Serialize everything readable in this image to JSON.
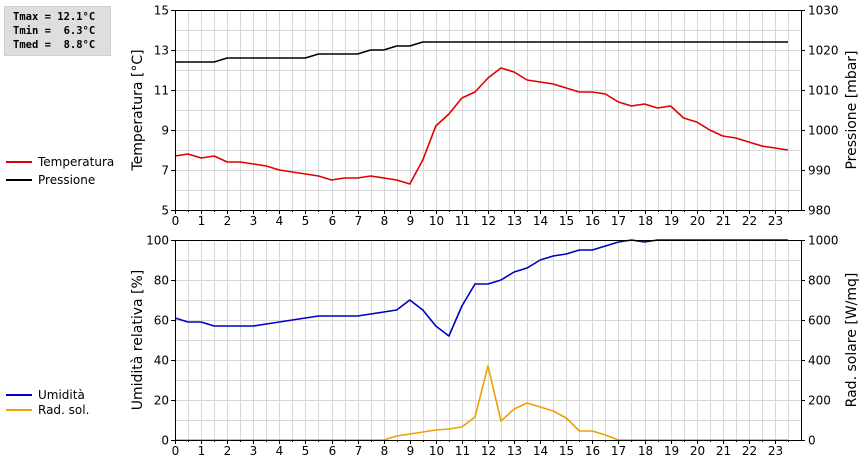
{
  "stats": {
    "tmax": "Tmax = 12.1°C",
    "tmin": "Tmin =  6.3°C",
    "tmed": "Tmed =  8.8°C"
  },
  "legend_top": [
    {
      "label": "Temperatura",
      "color": "#e00000"
    },
    {
      "label": "Pressione",
      "color": "#000000"
    }
  ],
  "legend_bottom": [
    {
      "label": "Umidità",
      "color": "#0000c0"
    },
    {
      "label": "Rad. sol.",
      "color": "#f0a000"
    }
  ],
  "chart_data": [
    {
      "type": "line",
      "ylabel_left": "Temperatura [°C]",
      "ylabel_right": "Pressione [mbar]",
      "xlim": [
        0,
        24
      ],
      "ylim_left": [
        5,
        15
      ],
      "ylim_right": [
        980,
        1030
      ],
      "x_ticks": [
        "0",
        "1",
        "2",
        "3",
        "4",
        "5",
        "6",
        "7",
        "8",
        "9",
        "10",
        "11",
        "12",
        "13",
        "14",
        "15",
        "16",
        "17",
        "18",
        "19",
        "20",
        "21",
        "22",
        "23"
      ],
      "y_ticks_left": [
        "5",
        "7",
        "9",
        "11",
        "13",
        "15"
      ],
      "y_ticks_right": [
        "980",
        "990",
        "1000",
        "1010",
        "1020",
        "1030"
      ],
      "grid": true,
      "series": [
        {
          "name": "Temperatura",
          "axis": "left",
          "color": "#e00000",
          "x": [
            0,
            0.5,
            1,
            1.5,
            2,
            2.5,
            3,
            3.5,
            4,
            4.5,
            5,
            5.5,
            6,
            6.5,
            7,
            7.5,
            8,
            8.5,
            9,
            9.5,
            10,
            10.5,
            11,
            11.5,
            12,
            12.5,
            13,
            13.5,
            14,
            14.5,
            15,
            15.5,
            16,
            16.5,
            17,
            17.5,
            18,
            18.5,
            19,
            19.5,
            20,
            20.5,
            21,
            21.5,
            22,
            22.5,
            23,
            23.5
          ],
          "values": [
            7.7,
            7.8,
            7.6,
            7.7,
            7.4,
            7.4,
            7.3,
            7.2,
            7.0,
            6.9,
            6.8,
            6.7,
            6.5,
            6.6,
            6.6,
            6.7,
            6.6,
            6.5,
            6.3,
            7.5,
            9.2,
            9.8,
            10.6,
            10.9,
            11.6,
            12.1,
            11.9,
            11.5,
            11.4,
            11.3,
            11.1,
            10.9,
            10.9,
            10.8,
            10.4,
            10.2,
            10.3,
            10.1,
            10.2,
            9.6,
            9.4,
            9.0,
            8.7,
            8.6,
            8.4,
            8.2,
            8.1,
            8.0
          ]
        },
        {
          "name": "Pressione",
          "axis": "right",
          "color": "#000000",
          "x": [
            0,
            1.5,
            2,
            3.5,
            5,
            5.5,
            7,
            7.5,
            8,
            8.5,
            9,
            9.5,
            23.5
          ],
          "values": [
            1017,
            1017,
            1018,
            1018,
            1018,
            1019,
            1019,
            1020,
            1020,
            1021,
            1021,
            1022,
            1022
          ]
        }
      ]
    },
    {
      "type": "line",
      "ylabel_left": "Umidità relativa [%]",
      "ylabel_right": "Rad. solare [W/mq]",
      "xlim": [
        0,
        24
      ],
      "ylim_left": [
        0,
        100
      ],
      "ylim_right": [
        0,
        1000
      ],
      "x_ticks": [
        "0",
        "1",
        "2",
        "3",
        "4",
        "5",
        "6",
        "7",
        "8",
        "9",
        "10",
        "11",
        "12",
        "13",
        "14",
        "15",
        "16",
        "17",
        "18",
        "19",
        "20",
        "21",
        "22",
        "23"
      ],
      "y_ticks_left": [
        "0",
        "20",
        "40",
        "60",
        "80",
        "100"
      ],
      "y_ticks_right": [
        "0",
        "200",
        "400",
        "600",
        "800",
        "1000"
      ],
      "grid": true,
      "series": [
        {
          "name": "Umidità",
          "axis": "left",
          "color": "#0000c0",
          "x": [
            0,
            0.5,
            1,
            1.5,
            2,
            2.5,
            3,
            3.5,
            4,
            4.5,
            5,
            5.5,
            6,
            6.5,
            7,
            7.5,
            8,
            8.5,
            9,
            9.5,
            10,
            10.5,
            11,
            11.5,
            12,
            12.5,
            13,
            13.5,
            14,
            14.5,
            15,
            15.5,
            16,
            16.5,
            17,
            17.5,
            18,
            18.5,
            19,
            23.5
          ],
          "values": [
            61,
            59,
            59,
            57,
            57,
            57,
            57,
            58,
            59,
            60,
            61,
            62,
            62,
            62,
            62,
            63,
            64,
            65,
            70,
            65,
            57,
            52,
            67,
            78,
            78,
            80,
            84,
            86,
            90,
            92,
            93,
            95,
            95,
            97,
            99,
            100,
            99,
            100,
            100,
            100
          ]
        },
        {
          "name": "Rad. sol.",
          "axis": "right",
          "color": "#f0a000",
          "x": [
            0,
            8,
            8.5,
            9,
            9.5,
            10,
            10.5,
            11,
            11.5,
            12,
            12.5,
            13,
            13.5,
            14,
            14.5,
            15,
            15.5,
            16,
            16.5,
            17,
            23.5
          ],
          "values": [
            0,
            0,
            20,
            30,
            40,
            50,
            55,
            65,
            115,
            370,
            95,
            155,
            185,
            165,
            145,
            110,
            45,
            45,
            25,
            0,
            0
          ]
        }
      ]
    }
  ]
}
